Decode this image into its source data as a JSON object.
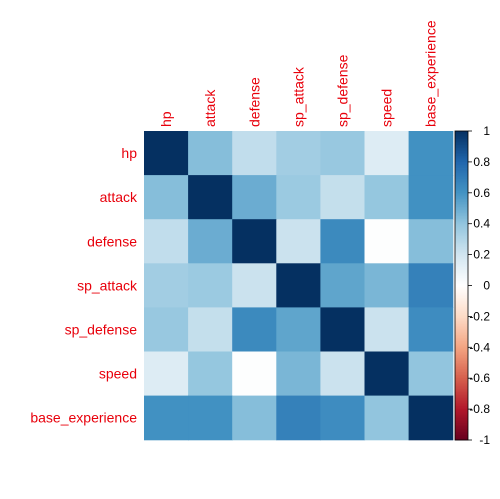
{
  "chart_data": {
    "type": "heatmap",
    "title": "",
    "variables": [
      "hp",
      "attack",
      "defense",
      "sp_attack",
      "sp_defense",
      "speed",
      "base_experience"
    ],
    "matrix": [
      [
        1.0,
        0.43,
        0.25,
        0.35,
        0.38,
        0.15,
        0.61
      ],
      [
        0.43,
        1.0,
        0.5,
        0.37,
        0.24,
        0.39,
        0.61
      ],
      [
        0.25,
        0.5,
        1.0,
        0.22,
        0.64,
        0.01,
        0.43
      ],
      [
        0.35,
        0.37,
        0.22,
        1.0,
        0.53,
        0.46,
        0.68
      ],
      [
        0.38,
        0.24,
        0.64,
        0.53,
        1.0,
        0.22,
        0.63
      ],
      [
        0.15,
        0.39,
        0.01,
        0.46,
        0.22,
        1.0,
        0.4
      ],
      [
        0.61,
        0.61,
        0.43,
        0.68,
        0.63,
        0.4,
        1.0
      ]
    ],
    "colorbar": {
      "range": [
        -1,
        1
      ],
      "ticks": [
        "1",
        "0.8",
        "0.6",
        "0.4",
        "0.2",
        "0",
        "-0.2",
        "-0.4",
        "-0.6",
        "-0.8",
        "-1"
      ]
    },
    "label_color": "#e8000b",
    "palette": [
      "#67001F",
      "#B2182B",
      "#D6604D",
      "#F4A582",
      "#FDDBC7",
      "#FFFFFF",
      "#D1E5F0",
      "#92C5DE",
      "#4393C3",
      "#2166AC",
      "#053061"
    ]
  }
}
